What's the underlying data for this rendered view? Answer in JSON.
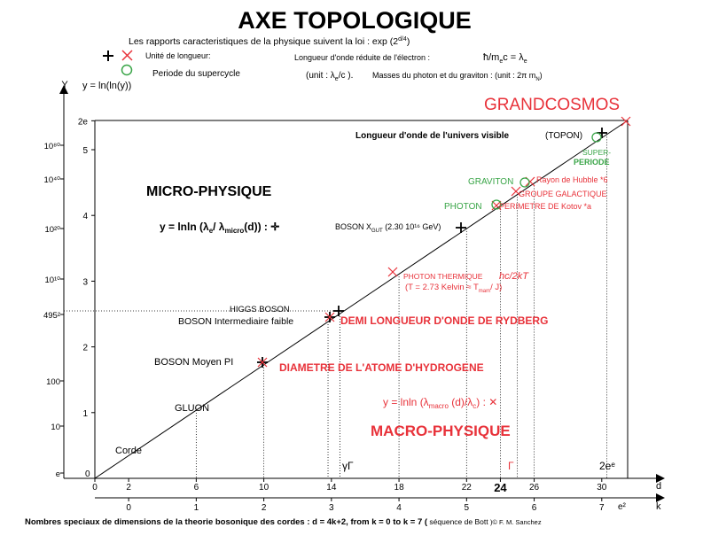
{
  "header": {
    "title": "AXE TOPOLOGIQUE",
    "subtitle": "Les rapports caracteristiques de la physique suivent la loi  : exp (2",
    "subtitle_exp": "d/4",
    "subtitle_end": ")",
    "legend_unit": "Unité de longueur:",
    "legend_period": "Periode du supercycle",
    "legend_wavelength": "Longueur d'onde réduite de l'électron :",
    "legend_formula": "ħ/m",
    "legend_formula_sub": "e",
    "legend_formula_rest": "c = λ",
    "legend_formula_sub2": "e",
    "legend_unit2": "(unit : λ",
    "legend_unit2_sub": "e",
    "legend_unit2_rest": "/c ).",
    "legend_masses": "Masses du photon et du graviton : (unit : 2π m",
    "legend_masses_sub": "N",
    "legend_masses_end": ")"
  },
  "axes": {
    "y_label": "Y",
    "y_formula": "y = ln(ln(y))",
    "x_label_d": "d",
    "x_label_k": "k",
    "y_ticks": [
      "1",
      "2",
      "3",
      "4",
      "5",
      "2e"
    ],
    "y_left_labels": [
      "e",
      "10",
      "100",
      "495²",
      "10¹⁰",
      "10²⁰",
      "10⁴⁰",
      "10⁸⁰"
    ],
    "x_d_ticks": [
      "0",
      "2",
      "6",
      "10",
      "14",
      "18",
      "22",
      "24",
      "26",
      "30"
    ],
    "x_k_ticks": [
      "0",
      "1",
      "2",
      "3",
      "4",
      "5",
      "6",
      "7"
    ],
    "origin_y": "0",
    "e2_label": "e²",
    "gamma_label": "γΓ",
    "gamma_red": "Γ",
    "two_e_e": "2eᵉ"
  },
  "regions": {
    "micro": "MICRO-PHYSIQUE",
    "macro": "MACRO-PHYSIQUE",
    "grandcosmos": "GRANDCOSMOS",
    "micro_formula": "y = lnln (λ",
    "micro_formula_sub1": "e",
    "micro_formula_mid": "/ λ",
    "micro_formula_sub2": "micro",
    "micro_formula_end": "(d)) : ✛",
    "macro_formula": "y = lnln (λ",
    "macro_formula_sub1": "macro",
    "macro_formula_mid": " (d)/λ",
    "macro_formula_sub2": "c",
    "macro_formula_end": ") : ✕"
  },
  "annotations": {
    "corde": "Corde",
    "gluon": "GLUON",
    "boson_pi": "BOSON Moyen PI",
    "higgs": "HIGGS BOSON",
    "boson_int": "BOSON Intermediaire faible",
    "boson_x": "BOSON X",
    "boson_x_sub": "GUT",
    "boson_x_rest": " (2.30 10¹⁶ GeV)",
    "universe": "Longueur d'onde de l'univers visible",
    "topon": "(TOPON)",
    "rydberg": "DEMI LONGUEUR D'ONDE DE RYDBERG",
    "hydrogen": "DIAMETRE DE L'ATOME D'HYDROGENE",
    "photon_th1": "PHOTON THERMIQUE",
    "photon_th_hc": "hc/2kT",
    "photon_th2": "(T = 2.73  Kelvin ≈ T",
    "photon_th2_sub": "mam",
    "photon_th2_end": "/ J)",
    "photon": "PHOTON",
    "graviton": "GRAVITON",
    "super": "SUPER-",
    "periode": "PERIODE",
    "hubble": "Rayon de Hubble *6",
    "groupe": "GROUPE GALACTIQUE",
    "perimetre": "PERIMETRE DE Kotov *a"
  },
  "footer": {
    "text": "Nombres speciaux de dimensions de la theorie bosonique des cordes :   d = 4k+2, from k = 0 to k = 7 (",
    "bott": " séquence de Bott ",
    "credit": ")© F. M. Sanchez"
  },
  "colors": {
    "red": "#e8323a",
    "green": "#3aa548",
    "black": "#000000"
  }
}
